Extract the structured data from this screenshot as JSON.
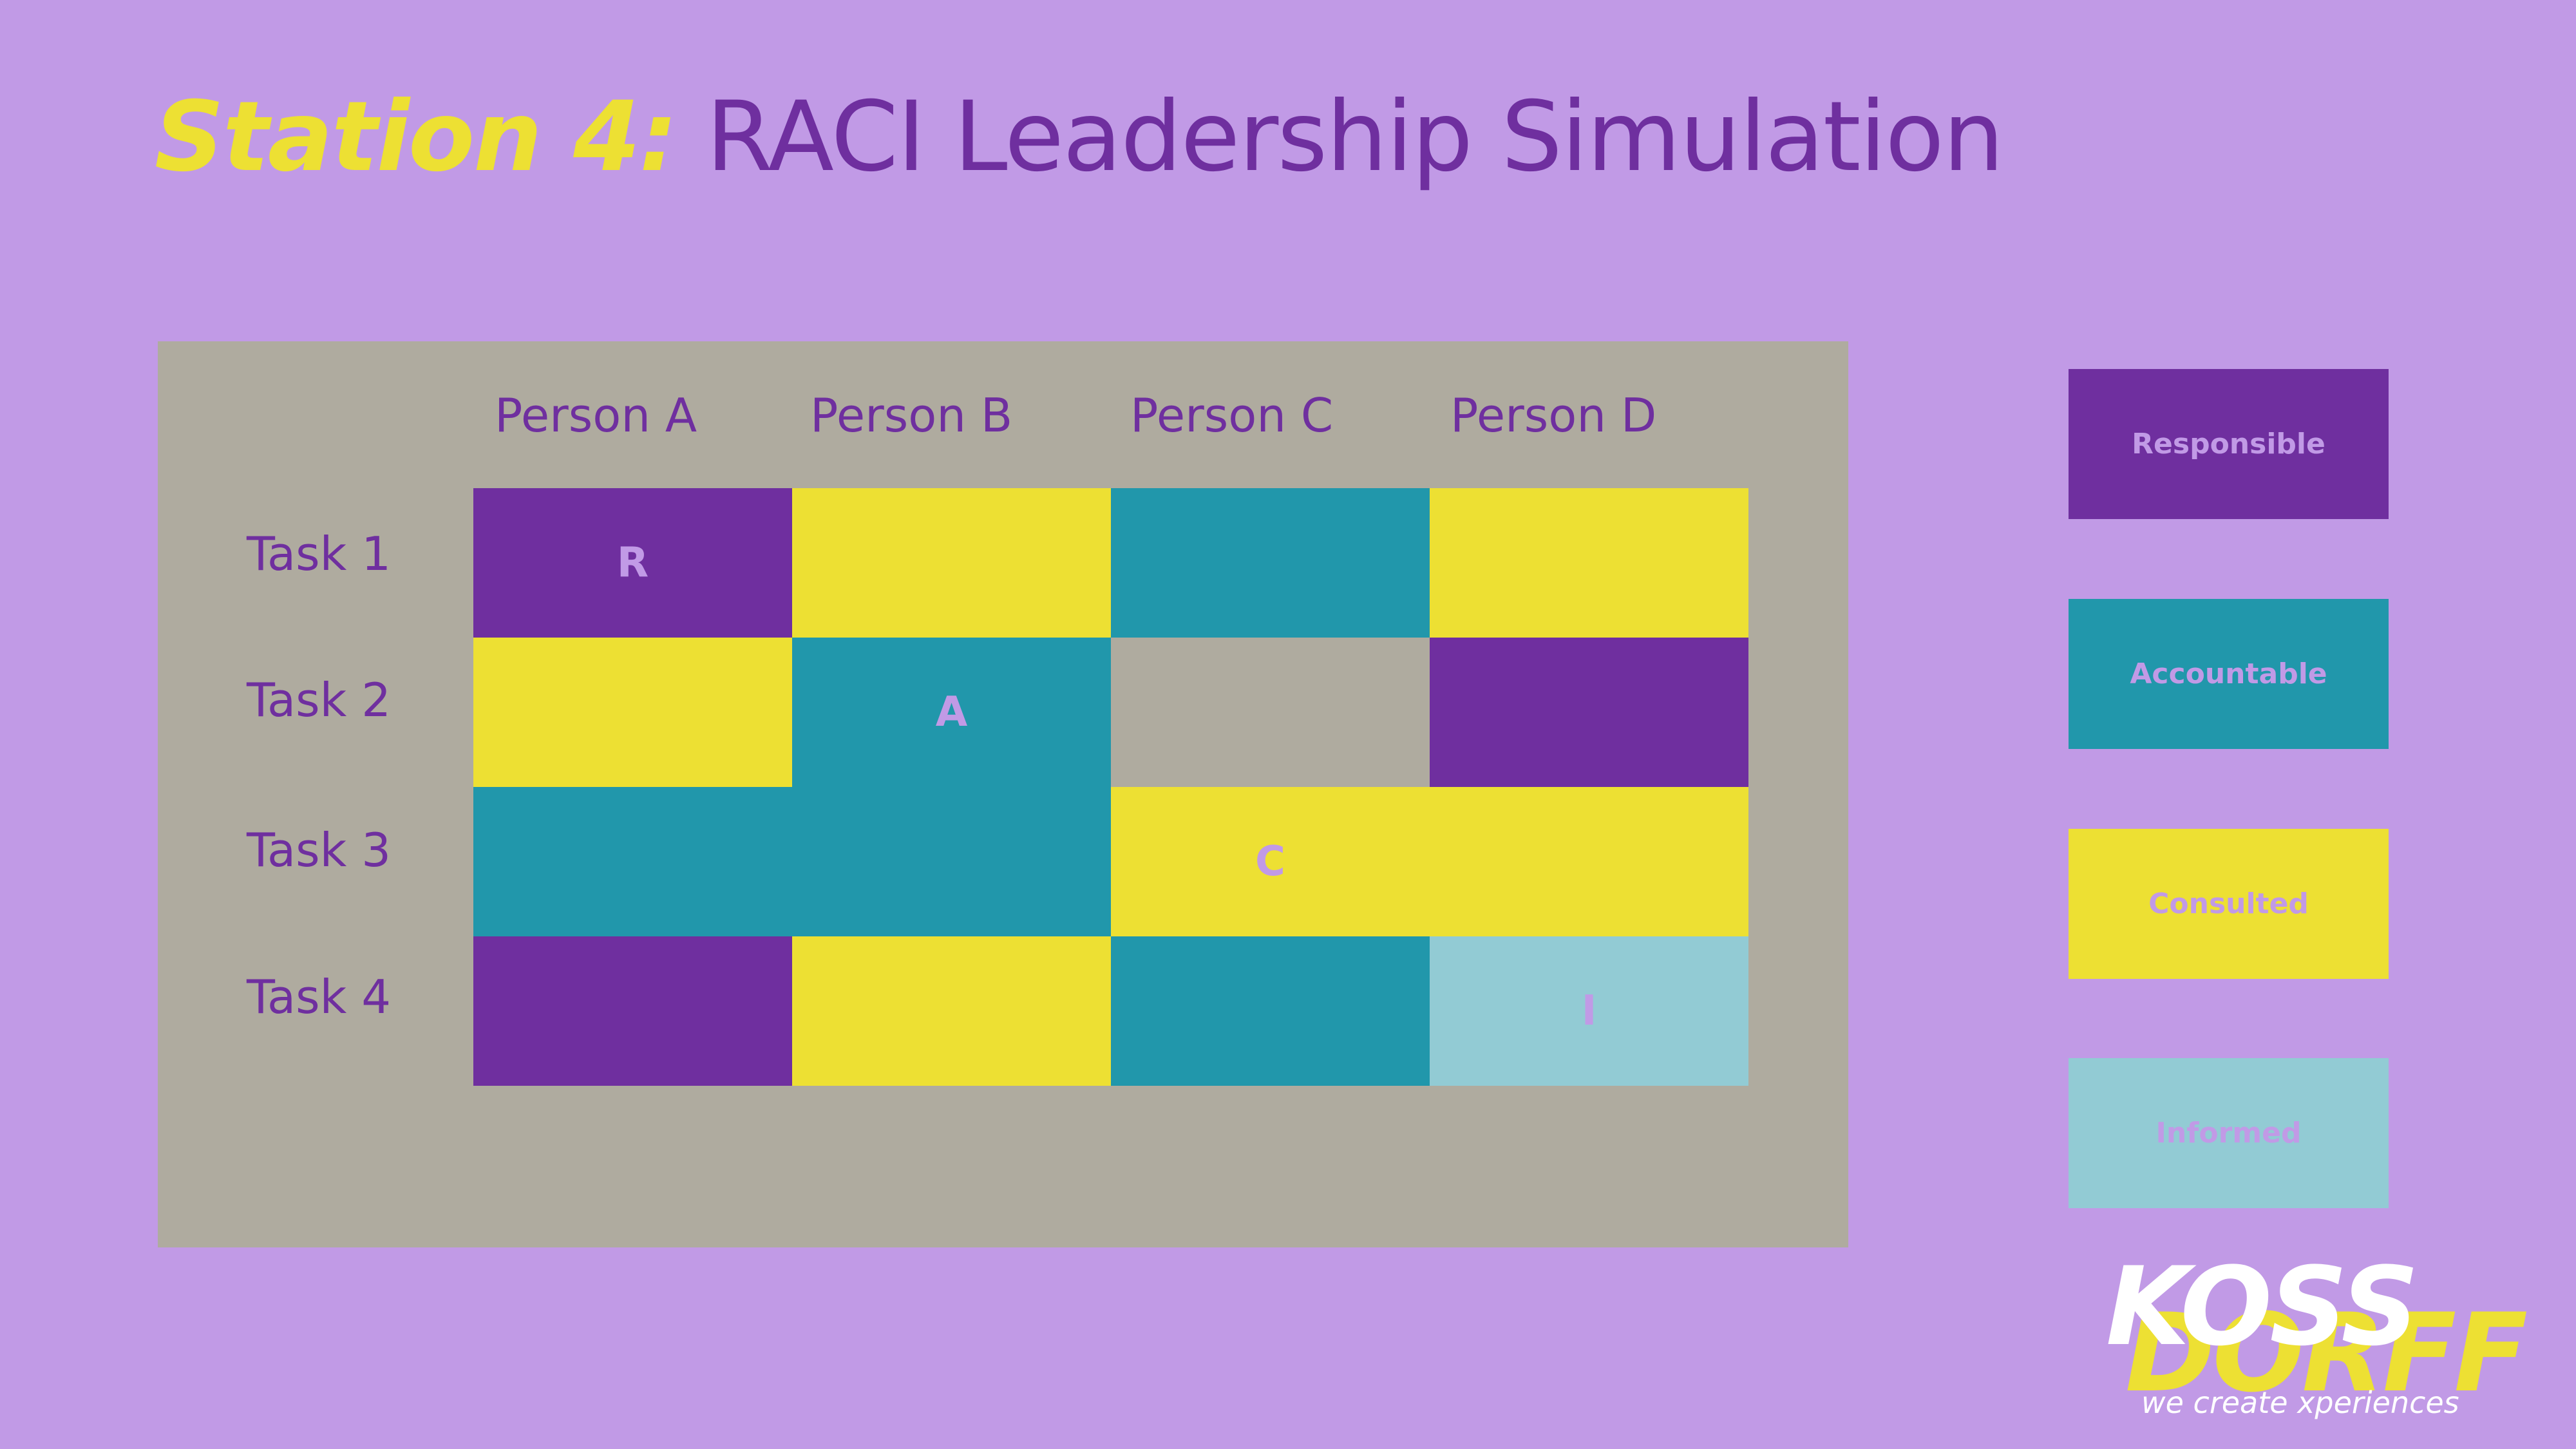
{
  "title": {
    "prefix": "Station 4:",
    "main": "RACI Leadership Simulation"
  },
  "matrix": {
    "columns": [
      "Person A",
      "Person B",
      "Person C",
      "Person D"
    ],
    "rows": [
      "Task 1",
      "Task 2",
      "Task 3",
      "Task 4"
    ],
    "cells": [
      [
        "R",
        "C",
        "A",
        "C"
      ],
      [
        "C",
        "A",
        "",
        "R"
      ],
      [
        "A",
        "A",
        "C",
        "C"
      ],
      [
        "R",
        "C",
        "A",
        "I"
      ]
    ],
    "cell_labels": [
      [
        "R",
        "",
        "",
        ""
      ],
      [
        "",
        "A",
        "",
        ""
      ],
      [
        "",
        "",
        "C",
        ""
      ],
      [
        "",
        "",
        "",
        "I"
      ]
    ]
  },
  "legend": [
    {
      "code": "R",
      "label": "Responsible",
      "color": "#6f2f9f"
    },
    {
      "code": "A",
      "label": "Accountable",
      "color": "#2197ab"
    },
    {
      "code": "C",
      "label": "Consulted",
      "color": "#ede033"
    },
    {
      "code": "I",
      "label": "Informed",
      "color": "#92cbd4"
    }
  ],
  "colors": {
    "background": "#c19ae6",
    "panel": "#afab9f",
    "empty_cell": "#afab9f",
    "accent_yellow": "#ede033",
    "accent_purple": "#6f2f9f"
  },
  "logo": {
    "line1": "KOSS",
    "line2": "DORFF",
    "tagline": "we create xperiences"
  }
}
